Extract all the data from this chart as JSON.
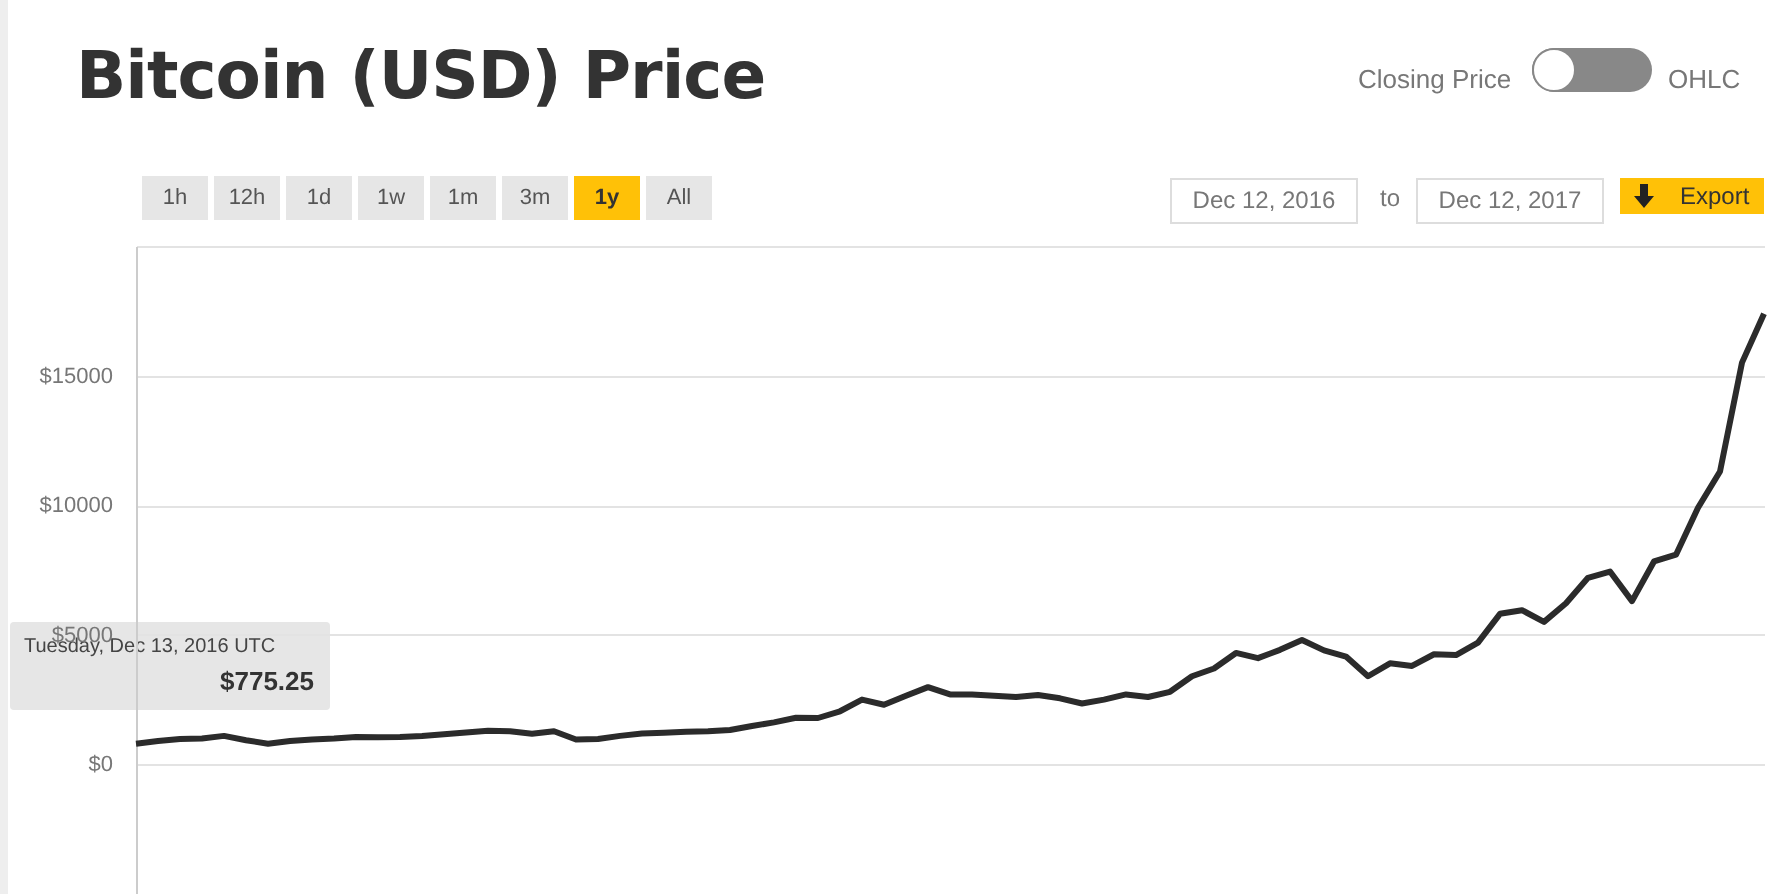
{
  "chart_data": {
    "type": "line",
    "title": "Bitcoin (USD) Price",
    "categories": [
      null,
      null,
      null,
      null,
      null,
      null,
      null,
      null,
      null,
      null,
      null,
      null,
      null,
      null,
      null,
      null,
      null,
      null,
      null,
      null,
      null,
      null,
      null,
      null,
      null,
      null,
      null,
      null,
      null,
      null,
      null,
      null,
      null,
      null,
      null,
      null,
      null,
      null,
      null,
      null,
      null,
      null,
      null,
      null,
      null,
      null,
      null,
      null,
      null,
      null,
      null,
      null,
      null,
      null,
      null,
      null,
      null,
      null,
      null,
      null,
      null,
      null,
      null,
      null,
      null,
      null,
      null,
      null,
      null,
      null,
      null,
      null,
      null,
      null,
      null
    ],
    "series": [
      {
        "color": "#2b2b2b",
        "values": [
          800,
          900,
          980,
          1000,
          1100,
          930,
          800,
          900,
          960,
          1000,
          1060,
          1050,
          1060,
          1100,
          1160,
          1230,
          1300,
          1280,
          1180,
          1280,
          960,
          980,
          1100,
          1190,
          1220,
          1260,
          1280,
          1330,
          1480,
          1620,
          1800,
          1790,
          2050,
          2500,
          2300,
          2650,
          2980,
          2700,
          2700,
          2650,
          2600,
          2680,
          2550,
          2350,
          2500,
          2700,
          2600,
          2800,
          3400,
          3700,
          4300,
          4100,
          4420,
          4800,
          4400,
          4160,
          3400,
          3900,
          3800,
          4250,
          4220,
          4700,
          5810,
          5950,
          5500,
          6220,
          7200,
          7440,
          6300,
          7830,
          8090,
          9900,
          11300,
          15500,
          17390
        ]
      }
    ],
    "ylim": [
      -5000,
      20000
    ],
    "yticks": [
      {
        "value": 0,
        "label": "$0"
      },
      {
        "value": 5000,
        "label": "$5000"
      },
      {
        "value": 10000,
        "label": "$10000"
      },
      {
        "value": 15000,
        "label": "$15000"
      },
      {
        "value": 20000,
        "label": null
      }
    ],
    "grid": "y",
    "tick_labels": "y",
    "annotations": [
      "Tuesday, Dec 13, 2016 UTC",
      "$775.25",
      "1h",
      "12h",
      "1d",
      "1w",
      "1m",
      "3m",
      "1y",
      "All",
      "Closing Price",
      "OHLC",
      "Dec 12, 2016",
      "to",
      "Dec 12, 2017",
      "Export"
    ]
  }
}
